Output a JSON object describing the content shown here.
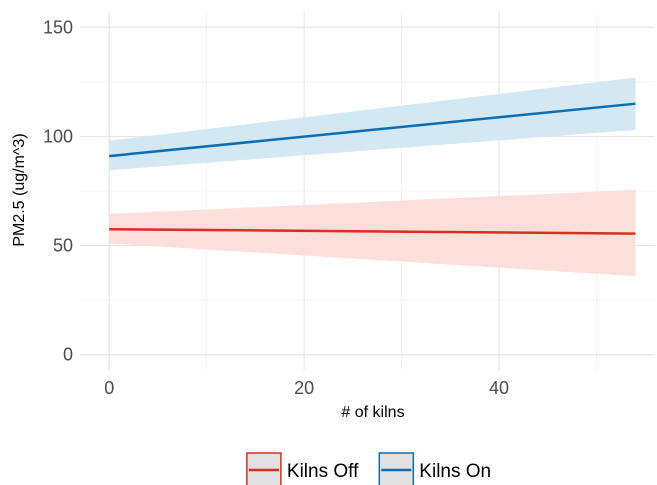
{
  "chart_data": {
    "type": "line",
    "xlabel": "# of kilns",
    "ylabel": "PM2.5 (ug/m^3)",
    "xlim": [
      -3,
      56
    ],
    "ylim": [
      -7,
      157
    ],
    "x_ticks": [
      0,
      20,
      40
    ],
    "y_ticks": [
      0,
      50,
      100,
      150
    ],
    "grid": true,
    "legend_position": "bottom",
    "series": [
      {
        "name": "Kilns Off",
        "color": "#d7301f",
        "fill": "#fcdedb",
        "x": [
          0,
          54
        ],
        "y": [
          57.5,
          55.5
        ],
        "ci_lower": [
          51,
          36
        ],
        "ci_upper": [
          64.5,
          75.5
        ]
      },
      {
        "name": "Kilns On",
        "color": "#0a6eb4",
        "fill": "#d2e8f2",
        "x": [
          0,
          54
        ],
        "y": [
          91,
          115
        ],
        "ci_lower": [
          84.5,
          103
        ],
        "ci_upper": [
          98,
          127
        ]
      }
    ]
  }
}
